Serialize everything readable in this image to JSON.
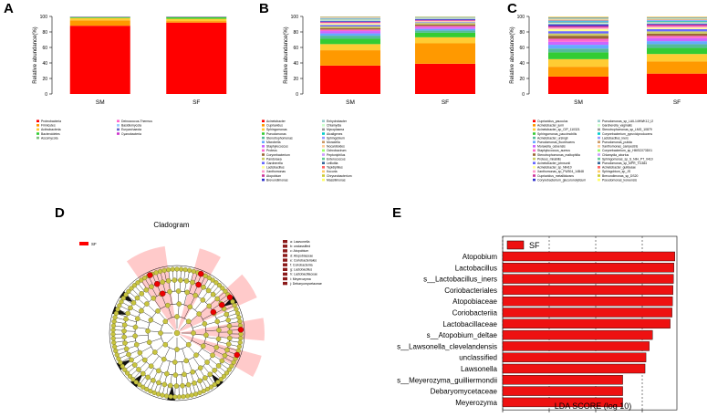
{
  "panels": {
    "A": {
      "letter": "A"
    },
    "B": {
      "letter": "B"
    },
    "C": {
      "letter": "C"
    },
    "D": {
      "letter": "D"
    },
    "E": {
      "letter": "E"
    }
  },
  "chart_data": [
    {
      "id": "A",
      "type": "bar",
      "stacked": true,
      "title": "",
      "ylabel": "Relative abundance(%)",
      "ylim": [
        0,
        100
      ],
      "yticks": [
        0,
        20,
        40,
        60,
        80,
        100
      ],
      "categories": [
        "SM",
        "SF"
      ],
      "series": [
        {
          "name": "Proteobacteria",
          "color": "#ff0000",
          "values": [
            88,
            92
          ]
        },
        {
          "name": "Firmicutes",
          "color": "#ff9900",
          "values": [
            7,
            2
          ]
        },
        {
          "name": "Actinobacteria",
          "color": "#ffcc33",
          "values": [
            3,
            3
          ]
        },
        {
          "name": "Bacteroidetes",
          "color": "#33cc33",
          "values": [
            1,
            2
          ]
        },
        {
          "name": "Ascomycota",
          "color": "#7fbf7f",
          "values": [
            0.5,
            0.5
          ]
        },
        {
          "name": "Deinococcus-Thermus",
          "color": "#ff66cc",
          "values": [
            0.3,
            0.3
          ]
        },
        {
          "name": "Basidiomycota",
          "color": "#99ccff",
          "values": [
            0.1,
            0.1
          ]
        },
        {
          "name": "Euryarchaeota",
          "color": "#6666cc",
          "values": [
            0.05,
            0.05
          ]
        },
        {
          "name": "Cyanobacteria",
          "color": "#cc33cc",
          "values": [
            0.05,
            0.05
          ]
        }
      ]
    },
    {
      "id": "B",
      "type": "bar",
      "stacked": true,
      "title": "",
      "ylabel": "Relative abundance(%)",
      "ylim": [
        0,
        100
      ],
      "yticks": [
        0,
        20,
        40,
        60,
        80,
        100
      ],
      "categories": [
        "SM",
        "SF"
      ],
      "series": [
        {
          "name": "Acinetobacter",
          "color": "#ff0000",
          "values": [
            37,
            40
          ]
        },
        {
          "name": "Cupriavidus",
          "color": "#ff9900",
          "values": [
            20,
            27
          ]
        },
        {
          "name": "Sphingomonas",
          "color": "#ffcc33",
          "values": [
            8,
            8
          ]
        },
        {
          "name": "Pseudomonas",
          "color": "#33cc33",
          "values": [
            7,
            6
          ]
        },
        {
          "name": "Stenotrophomonas",
          "color": "#55bb99",
          "values": [
            4,
            3
          ]
        },
        {
          "name": "Microbella",
          "color": "#66aaff",
          "values": [
            3,
            2
          ]
        },
        {
          "name": "Staphylococcus",
          "color": "#cc66ff",
          "values": [
            3,
            2
          ]
        },
        {
          "name": "Proteus",
          "color": "#ff66cc",
          "values": [
            2,
            2
          ]
        },
        {
          "name": "Corynebacterium",
          "color": "#996633",
          "values": [
            2,
            2
          ]
        },
        {
          "name": "Pandoraea",
          "color": "#cccc66",
          "values": [
            2,
            2
          ]
        },
        {
          "name": "Gardnerella",
          "color": "#6666ff",
          "values": [
            2,
            1
          ]
        },
        {
          "name": "Lactobacillus",
          "color": "#ffff99",
          "values": [
            2,
            1
          ]
        },
        {
          "name": "Xanthomonas",
          "color": "#ff99cc",
          "values": [
            1,
            1
          ]
        },
        {
          "name": "Atopobium",
          "color": "#cc3399",
          "values": [
            1,
            1
          ]
        },
        {
          "name": "Brevundimonas",
          "color": "#3333cc",
          "values": [
            1,
            1
          ]
        },
        {
          "name": "Enhydrobacter",
          "color": "#99cccc",
          "values": [
            1,
            0.5
          ]
        },
        {
          "name": "Chlamydia",
          "color": "#ccffcc",
          "values": [
            1,
            0.5
          ]
        },
        {
          "name": "Mycoplasma",
          "color": "#999999",
          "values": [
            0.5,
            0.3
          ]
        },
        {
          "name": "Alcaligenes",
          "color": "#00cccc",
          "values": [
            0.5,
            0.3
          ]
        },
        {
          "name": "Sphingobium",
          "color": "#9999ff",
          "values": [
            0.5,
            0.3
          ]
        },
        {
          "name": "Moraxella",
          "color": "#cc9966",
          "values": [
            0.4,
            0.3
          ]
        },
        {
          "name": "Nocardioides",
          "color": "#ffcc99",
          "values": [
            0.4,
            0.2
          ]
        },
        {
          "name": "Ochrobactrum",
          "color": "#99ff66",
          "values": [
            0.3,
            0.2
          ]
        },
        {
          "name": "Peptoniphilus",
          "color": "#cc99ff",
          "values": [
            0.3,
            0.2
          ]
        },
        {
          "name": "Enterococcus",
          "color": "#66cc99",
          "values": [
            0.3,
            0.2
          ]
        },
        {
          "name": "Lelliottia",
          "color": "#336699",
          "values": [
            0.2,
            0.2
          ]
        },
        {
          "name": "Tepidiphilus",
          "color": "#ff6666",
          "values": [
            0.2,
            0.1
          ]
        },
        {
          "name": "Kocuria",
          "color": "#ffcc66",
          "values": [
            0.2,
            0.1
          ]
        },
        {
          "name": "Chryseobacterium",
          "color": "#cccc33",
          "values": [
            0.2,
            0.1
          ]
        },
        {
          "name": "Massilimonas",
          "color": "#ffff66",
          "values": [
            0.1,
            0.1
          ]
        }
      ]
    },
    {
      "id": "C",
      "type": "bar",
      "stacked": true,
      "title": "",
      "ylabel": "Relative abundance(%)",
      "ylim": [
        0,
        100
      ],
      "yticks": [
        0,
        20,
        40,
        60,
        80,
        100
      ],
      "categories": [
        "SM",
        "SF"
      ],
      "series": [
        {
          "name": "Cupriavidus_pauculus",
          "color": "#ff0000",
          "values": [
            23,
            27
          ]
        },
        {
          "name": "Acinetobacter_junii",
          "color": "#ff9900",
          "values": [
            13,
            16
          ]
        },
        {
          "name": "Acinetobacter_sp_CIP_110321",
          "color": "#ffcc33",
          "values": [
            10,
            10
          ]
        },
        {
          "name": "Sphingomonas_paucimobilis",
          "color": "#33cc33",
          "values": [
            9,
            8
          ]
        },
        {
          "name": "Acinetobacter_ursingii",
          "color": "#55bb99",
          "values": [
            5,
            5
          ]
        },
        {
          "name": "Pseudomonas_fluorescens",
          "color": "#66aaff",
          "values": [
            5,
            4
          ]
        },
        {
          "name": "Moraxella_osloensis",
          "color": "#cc66ff",
          "values": [
            4,
            4
          ]
        },
        {
          "name": "Staphylococcus_aureus",
          "color": "#ff66cc",
          "values": [
            4,
            3
          ]
        },
        {
          "name": "Stenotrophomonas_maltophilia",
          "color": "#996633",
          "values": [
            4,
            3
          ]
        },
        {
          "name": "Proteus_mirabilis",
          "color": "#cccc66",
          "values": [
            3,
            3
          ]
        },
        {
          "name": "Acinetobacter_johnsonii",
          "color": "#6666ff",
          "values": [
            3,
            3
          ]
        },
        {
          "name": "Acinetobacter_sp_NIH10",
          "color": "#ffff99",
          "values": [
            3,
            2
          ]
        },
        {
          "name": "Xanthomonas_sp_FW304_14B48",
          "color": "#ff99cc",
          "values": [
            2,
            2
          ]
        },
        {
          "name": "Cupriavidus_metallidurans",
          "color": "#cc3399",
          "values": [
            2,
            2
          ]
        },
        {
          "name": "Corynebacterium_glucuronolyticum",
          "color": "#3333cc",
          "values": [
            2,
            1
          ]
        },
        {
          "name": "Pseudomonas_sp_LAIL14HWK12_I2",
          "color": "#99cccc",
          "values": [
            1,
            1
          ]
        },
        {
          "name": "Gardnerella_vaginalis",
          "color": "#ccffcc",
          "values": [
            1,
            1
          ]
        },
        {
          "name": "Stenotrophomonas_sp_LMG_10879",
          "color": "#999999",
          "values": [
            1,
            1
          ]
        },
        {
          "name": "Corynebacterium_pyruviciproducens",
          "color": "#00cccc",
          "values": [
            1,
            1
          ]
        },
        {
          "name": "Lactobacillus_iners",
          "color": "#9999ff",
          "values": [
            1,
            1
          ]
        },
        {
          "name": "Pseudomonas_putida",
          "color": "#cc9966",
          "values": [
            1,
            0.8
          ]
        },
        {
          "name": "Xanthomonas_campestris",
          "color": "#ffcc99",
          "values": [
            0.8,
            0.7
          ]
        },
        {
          "name": "Corynebacterium_sp_HMSC073D01",
          "color": "#99ff66",
          "values": [
            0.7,
            0.6
          ]
        },
        {
          "name": "Chlamydia_abortus",
          "color": "#cc99ff",
          "values": [
            0.6,
            0.5
          ]
        },
        {
          "name": "Sphingomonas_sp_S_NIH_PT_0410",
          "color": "#66cc99",
          "values": [
            0.5,
            0.5
          ]
        },
        {
          "name": "Pseudomonas_sp_MPR_TI1384",
          "color": "#336699",
          "values": [
            0.5,
            0.4
          ]
        },
        {
          "name": "Acinetobacter_guillouiae",
          "color": "#ff6666",
          "values": [
            0.4,
            0.4
          ]
        },
        {
          "name": "Sphingobium_sp_JS",
          "color": "#ffcc66",
          "values": [
            0.4,
            0.3
          ]
        },
        {
          "name": "Brevundimonas_sp_DS20",
          "color": "#cccc33",
          "values": [
            0.3,
            0.3
          ]
        },
        {
          "name": "Pseudomonas_koreensis",
          "color": "#ffff66",
          "values": [
            0.3,
            0.3
          ]
        }
      ]
    },
    {
      "id": "D",
      "type": "cladogram",
      "title": "Cladogram",
      "group_legend": [
        {
          "name": "SF",
          "color": "#ff0000"
        }
      ],
      "taxa_legend": [
        "a: Lawsonella",
        "b: unclassified",
        "c: Atopobium",
        "d: Atopobiaceae",
        "e: Coriobacteriales",
        "f: Coriobacteriia",
        "g: Lactobacillus",
        "h: Lactobacillaceae",
        "i: Meyerozyma",
        "j: Debaryomycetaceae"
      ]
    },
    {
      "id": "E",
      "type": "bar",
      "orientation": "horizontal",
      "legend": [
        {
          "name": "SF",
          "color": "#ee1111"
        }
      ],
      "xlabel": "LDA SCORE (log 10)",
      "xlim": [
        0,
        4
      ],
      "xticks": [
        0,
        1,
        2,
        3
      ],
      "categories": [
        "Atopobium",
        "Lactobacillus",
        "s__Lactobacillus_iners",
        "Coriobacteriales",
        "Atopobiaceae",
        "Coriobacteriia",
        "Lactobacillaceae",
        "s__Atopobium_deltae",
        "s__Lawsonella_clevelandensis",
        "unclassified",
        "Lawsonella",
        "s__Meyerozyma_guilliermondii",
        "Debaryomycetaceae",
        "Meyerozyma"
      ],
      "values": [
        3.7,
        3.68,
        3.67,
        3.66,
        3.65,
        3.64,
        3.6,
        3.22,
        3.15,
        3.08,
        3.06,
        2.58,
        2.58,
        2.58
      ]
    }
  ]
}
